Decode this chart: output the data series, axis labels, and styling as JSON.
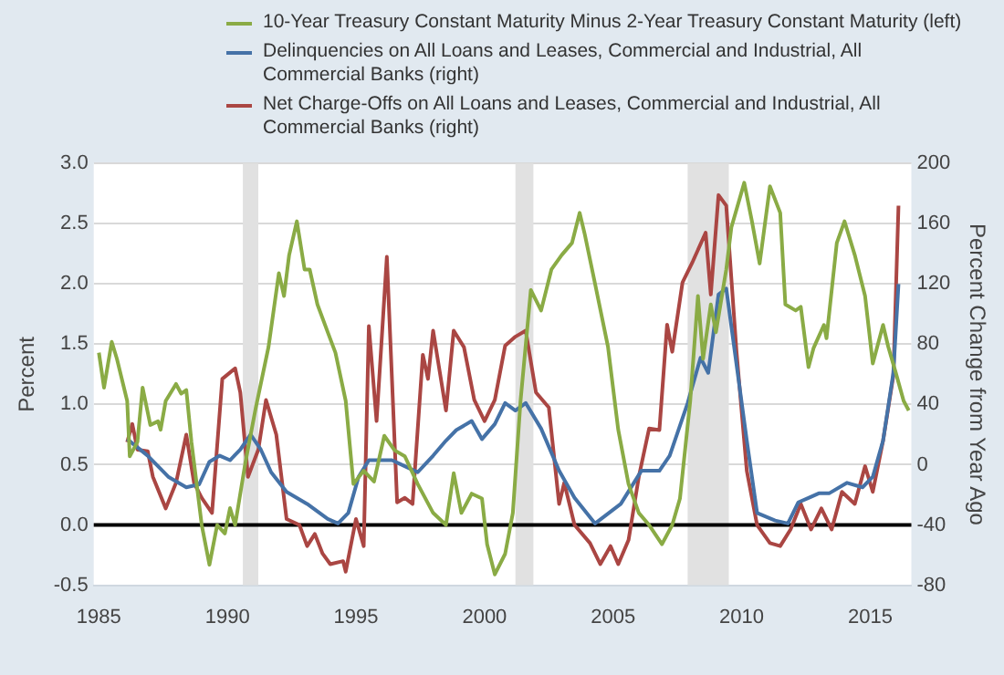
{
  "chart_data": {
    "type": "line",
    "ylabel": "Percent",
    "y2label": "Percent Change from Year Ago",
    "legend": "top",
    "grid": "y",
    "xlim": [
      1984.8,
      2016.6
    ],
    "xticks": [
      1985,
      1990,
      1995,
      2000,
      2005,
      2010,
      2015
    ],
    "ylim": [
      -0.5,
      3.0
    ],
    "yticks": [
      {
        "value": -0.5,
        "label": "-0.5"
      },
      {
        "value": 0,
        "label": "0.0"
      },
      {
        "value": 0.5,
        "label": "0.5"
      },
      {
        "value": 1,
        "label": "1.0"
      },
      {
        "value": 1.5,
        "label": "1.5"
      },
      {
        "value": 2,
        "label": "2.0"
      },
      {
        "value": 2.5,
        "label": "2.5"
      },
      {
        "value": 3,
        "label": "3.0"
      }
    ],
    "y2lim": [
      -80,
      200
    ],
    "y2ticks": [
      -80,
      -40,
      0,
      40,
      80,
      120,
      160,
      200
    ],
    "bands": [
      {
        "axis": "x",
        "from": 1990.6,
        "to": 1991.2,
        "color": "#e1e1e1"
      },
      {
        "axis": "x",
        "from": 2001.2,
        "to": 2001.9,
        "color": "#e1e1e1"
      },
      {
        "axis": "x",
        "from": 2007.9,
        "to": 2009.5,
        "color": "#e1e1e1"
      }
    ],
    "ref_lines": [
      {
        "axis": "y",
        "value": 0,
        "color": "#000000"
      }
    ],
    "series": [
      {
        "name": "10-Year Treasury Constant Maturity Minus 2-Year Treasury Constant Maturity (left)",
        "color": "#8aab45",
        "axis": "y",
        "x": [
          1985.0,
          1985.2,
          1985.5,
          1985.7,
          1986.1,
          1986.2,
          1986.5,
          1986.7,
          1987.0,
          1987.3,
          1987.4,
          1987.6,
          1988.0,
          1988.2,
          1988.4,
          1988.6,
          1989.0,
          1989.3,
          1989.6,
          1989.9,
          1990.1,
          1990.3,
          1990.7,
          1991.1,
          1991.6,
          1992.0,
          1992.2,
          1992.4,
          1992.7,
          1993.0,
          1993.2,
          1993.5,
          1993.9,
          1994.2,
          1994.6,
          1994.9,
          1995.3,
          1995.7,
          1996.1,
          1996.5,
          1996.9,
          1997.4,
          1998.0,
          1998.5,
          1998.8,
          1999.1,
          1999.5,
          1999.9,
          2000.1,
          2000.4,
          2000.8,
          2001.1,
          2001.4,
          2001.8,
          2002.2,
          2002.6,
          2003.0,
          2003.4,
          2003.7,
          2003.9,
          2004.3,
          2004.8,
          2005.2,
          2005.6,
          2006.0,
          2006.4,
          2006.9,
          2007.3,
          2007.6,
          2008.0,
          2008.3,
          2008.5,
          2008.8,
          2009.0,
          2009.4,
          2009.6,
          2010.1,
          2010.4,
          2010.7,
          2011.1,
          2011.5,
          2011.7,
          2012.1,
          2012.3,
          2012.6,
          2012.8,
          2013.2,
          2013.3,
          2013.7,
          2014.0,
          2014.4,
          2014.8,
          2015.1,
          2015.5,
          2015.7,
          2016.0,
          2016.3,
          2016.5
        ],
        "values": [
          1.43,
          1.14,
          1.52,
          1.38,
          1.03,
          0.57,
          0.69,
          1.14,
          0.83,
          0.86,
          0.79,
          1.03,
          1.17,
          1.09,
          1.12,
          0.69,
          0.0,
          -0.33,
          0.0,
          -0.07,
          0.14,
          0.0,
          0.52,
          0.97,
          1.48,
          2.09,
          1.9,
          2.24,
          2.52,
          2.12,
          2.12,
          1.83,
          1.6,
          1.43,
          1.03,
          0.34,
          0.45,
          0.36,
          0.74,
          0.62,
          0.57,
          0.34,
          0.1,
          0.0,
          0.43,
          0.1,
          0.26,
          0.22,
          -0.16,
          -0.41,
          -0.24,
          0.1,
          1.03,
          1.95,
          1.78,
          2.12,
          2.24,
          2.34,
          2.59,
          2.41,
          2.0,
          1.48,
          0.79,
          0.34,
          0.1,
          0.0,
          -0.16,
          0.0,
          0.22,
          1.03,
          1.9,
          1.38,
          1.83,
          1.6,
          2.12,
          2.47,
          2.84,
          2.52,
          2.17,
          2.81,
          2.59,
          1.83,
          1.78,
          1.81,
          1.31,
          1.47,
          1.66,
          1.55,
          2.34,
          2.52,
          2.24,
          1.9,
          1.34,
          1.66,
          1.48,
          1.26,
          1.03,
          0.95
        ]
      },
      {
        "name": "Delinquencies on All Loans and Leases, Commercial and Industrial, All Commercial Banks (right)",
        "color": "#4572a7",
        "axis": "y2",
        "x": [
          1986.1,
          1986.9,
          1987.7,
          1988.4,
          1988.9,
          1989.3,
          1989.7,
          1990.1,
          1990.5,
          1990.9,
          1991.3,
          1991.7,
          1992.3,
          1993.1,
          1993.9,
          1994.3,
          1994.7,
          1995.1,
          1995.5,
          1996.4,
          1996.9,
          1997.4,
          1998.0,
          1998.5,
          1998.9,
          1999.5,
          1999.9,
          2000.4,
          2000.8,
          2001.2,
          2001.6,
          2002.2,
          2002.9,
          2003.5,
          2004.3,
          2005.3,
          2006.1,
          2006.8,
          2007.2,
          2007.9,
          2008.4,
          2008.7,
          2009.1,
          2009.4,
          2010.2,
          2010.6,
          2011.3,
          2011.8,
          2012.2,
          2012.6,
          2013.0,
          2013.4,
          2014.1,
          2014.7,
          2015.1,
          2015.5,
          2015.9,
          2016.1
        ],
        "values": [
          17,
          6,
          -8,
          -15,
          -13,
          2,
          6,
          3,
          10,
          20,
          10,
          -5,
          -18,
          -26,
          -36,
          -39,
          -32,
          -8,
          3,
          3,
          -1,
          -5,
          6,
          16,
          23,
          29,
          17,
          27,
          41,
          36,
          41,
          24,
          -4,
          -22,
          -39,
          -26,
          -4,
          -4,
          6,
          41,
          71,
          61,
          113,
          117,
          16,
          -32,
          -37,
          -39,
          -25,
          -22,
          -19,
          -19,
          -12,
          -15,
          -8,
          16,
          61,
          120
        ]
      },
      {
        "name": "Net Charge-Offs on All Loans and Leases, Commercial and Industrial, All Commercial Banks (right)",
        "color": "#aa4643",
        "axis": "y2",
        "x": [
          1986.1,
          1986.3,
          1986.5,
          1986.9,
          1987.1,
          1987.6,
          1988.0,
          1988.4,
          1988.7,
          1989.0,
          1989.4,
          1989.8,
          1990.3,
          1990.5,
          1990.8,
          1991.2,
          1991.5,
          1991.9,
          1992.3,
          1992.8,
          1993.1,
          1993.4,
          1993.7,
          1994.0,
          1994.5,
          1994.6,
          1995.0,
          1995.3,
          1995.5,
          1995.8,
          1996.2,
          1996.6,
          1996.9,
          1997.2,
          1997.6,
          1997.8,
          1998.0,
          1998.5,
          1998.8,
          1999.2,
          1999.6,
          2000.0,
          2000.4,
          2000.8,
          2001.2,
          2001.6,
          2002.0,
          2002.5,
          2002.9,
          2003.1,
          2003.5,
          2004.1,
          2004.5,
          2004.9,
          2005.2,
          2005.6,
          2006.0,
          2006.4,
          2006.8,
          2007.1,
          2007.3,
          2007.7,
          2008.1,
          2008.6,
          2008.8,
          2009.1,
          2009.4,
          2009.8,
          2010.2,
          2010.6,
          2011.1,
          2011.5,
          2011.9,
          2012.3,
          2012.7,
          2013.1,
          2013.5,
          2013.9,
          2014.4,
          2014.8,
          2015.1,
          2015.5,
          2015.9,
          2016.1
        ],
        "values": [
          15,
          27,
          10,
          9,
          -8,
          -29,
          -12,
          20,
          -12,
          -22,
          -32,
          57,
          64,
          48,
          -8,
          10,
          43,
          20,
          -36,
          -40,
          -54,
          -46,
          -59,
          -66,
          -64,
          -71,
          -36,
          -54,
          92,
          29,
          138,
          -25,
          -22,
          -26,
          73,
          57,
          89,
          36,
          89,
          78,
          43,
          29,
          43,
          79,
          85,
          89,
          48,
          38,
          -26,
          -12,
          -40,
          -52,
          -66,
          -54,
          -66,
          -50,
          -8,
          24,
          23,
          93,
          75,
          121,
          135,
          154,
          113,
          179,
          172,
          75,
          -4,
          -40,
          -52,
          -54,
          -43,
          -26,
          -43,
          -29,
          -43,
          -18,
          -26,
          -1,
          -18,
          16,
          59,
          172
        ]
      }
    ]
  }
}
